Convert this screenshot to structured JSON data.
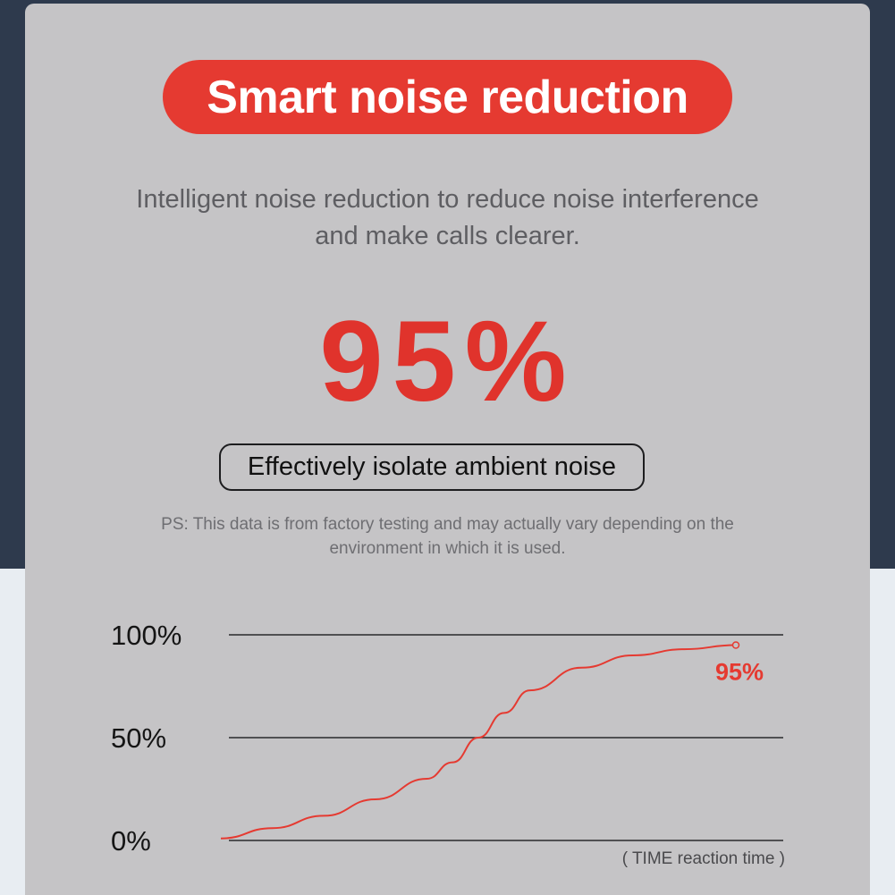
{
  "title": "Smart noise reduction",
  "subtitle": {
    "line1": "Intelligent noise reduction to reduce noise interference",
    "line2": "and make calls clearer."
  },
  "headline_value": "95%",
  "isolate_label": "Effectively isolate ambient noise",
  "disclaimer": {
    "line1": "PS: This data is from factory testing and may actually vary depending on the",
    "line2": "environment in which it is used."
  },
  "colors": {
    "accent": "#e53a31",
    "card": "#c5c4c6",
    "background_top": "#2e3a4d",
    "background_bottom": "#e8edf2"
  },
  "chart_data": {
    "type": "line",
    "title": "",
    "xlabel": "( TIME reaction time )",
    "ylabel": "",
    "ylim": [
      0,
      100
    ],
    "y_ticks": [
      "100%",
      "50%",
      "0%"
    ],
    "y_tick_values": [
      100,
      50,
      0
    ],
    "grid": true,
    "series": [
      {
        "color": "#e53a31",
        "x": [
          0,
          0.1,
          0.2,
          0.3,
          0.4,
          0.45,
          0.5,
          0.55,
          0.6,
          0.7,
          0.8,
          0.9,
          1.0
        ],
        "y": [
          1,
          6,
          12,
          20,
          30,
          38,
          50,
          62,
          73,
          84,
          90,
          93,
          95
        ]
      }
    ],
    "end_label": "95%"
  }
}
